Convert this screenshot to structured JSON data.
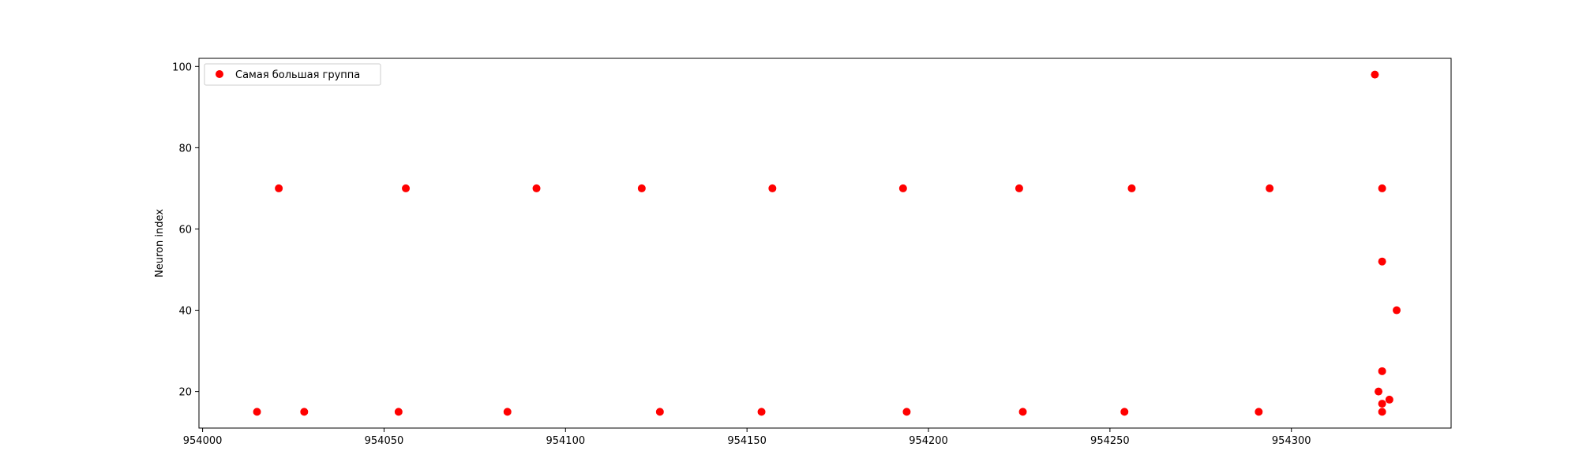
{
  "chart_data": {
    "type": "scatter",
    "title": "",
    "xlabel": "",
    "ylabel": "Neuron index",
    "xlim": [
      953999,
      954344
    ],
    "ylim": [
      11,
      102
    ],
    "xticks": [
      954000,
      954050,
      954100,
      954150,
      954200,
      954250,
      954300
    ],
    "yticks": [
      20,
      40,
      60,
      80,
      100
    ],
    "grid": false,
    "legend_position": "top-left",
    "series": [
      {
        "name": "Самая большая группа",
        "color": "#ff0000",
        "marker": "circle",
        "points": [
          {
            "x": 954015,
            "y": 15
          },
          {
            "x": 954021,
            "y": 70
          },
          {
            "x": 954028,
            "y": 15
          },
          {
            "x": 954054,
            "y": 15
          },
          {
            "x": 954056,
            "y": 70
          },
          {
            "x": 954084,
            "y": 15
          },
          {
            "x": 954092,
            "y": 70
          },
          {
            "x": 954121,
            "y": 70
          },
          {
            "x": 954126,
            "y": 15
          },
          {
            "x": 954154,
            "y": 15
          },
          {
            "x": 954157,
            "y": 70
          },
          {
            "x": 954193,
            "y": 70
          },
          {
            "x": 954194,
            "y": 15
          },
          {
            "x": 954225,
            "y": 70
          },
          {
            "x": 954226,
            "y": 15
          },
          {
            "x": 954254,
            "y": 15
          },
          {
            "x": 954256,
            "y": 70
          },
          {
            "x": 954291,
            "y": 15
          },
          {
            "x": 954294,
            "y": 70
          },
          {
            "x": 954323,
            "y": 98
          },
          {
            "x": 954324,
            "y": 20
          },
          {
            "x": 954325,
            "y": 52
          },
          {
            "x": 954325,
            "y": 70
          },
          {
            "x": 954325,
            "y": 25
          },
          {
            "x": 954325,
            "y": 17
          },
          {
            "x": 954325,
            "y": 15
          },
          {
            "x": 954327,
            "y": 18
          },
          {
            "x": 954329,
            "y": 40
          }
        ]
      }
    ]
  }
}
